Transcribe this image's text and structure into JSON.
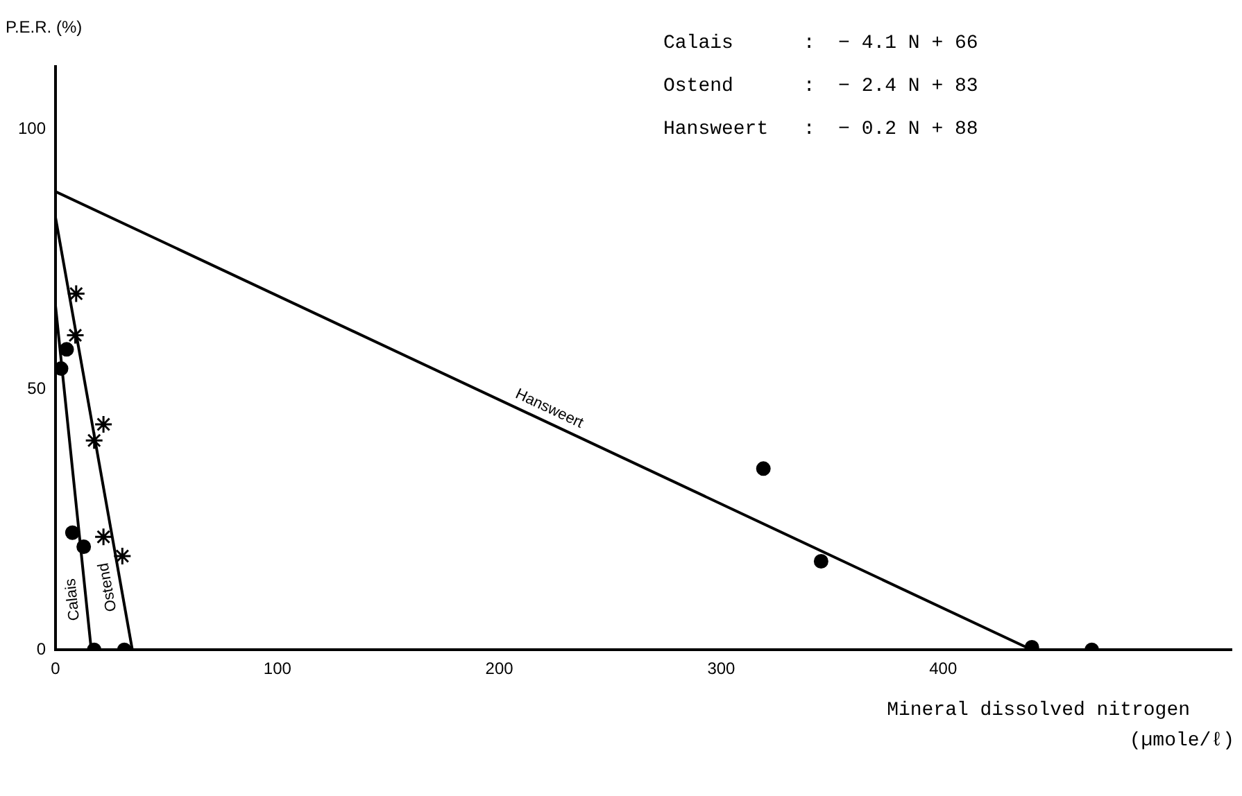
{
  "chart_data": {
    "type": "scatter",
    "ylabel": "P.E.R. (%)",
    "xlabel": "Mineral dissolved nitrogen (µmole/ℓ)",
    "xlim": [
      0,
      530
    ],
    "ylim": [
      0,
      112
    ],
    "xticks": [
      0,
      100,
      200,
      300,
      400
    ],
    "yticks": [
      0,
      50,
      100
    ],
    "grid": false,
    "legend": false,
    "annotations": [
      "Calais      :  − 4.1 N + 66",
      "Ostend      :  − 2.4 N + 83",
      "Hansweert   :  − 0.2 N + 88"
    ],
    "series": [
      {
        "type": "scatter",
        "marker": "circle",
        "color": "#000000",
        "x": [
          5,
          2.5,
          7.6,
          12.7,
          17.4,
          31
        ],
        "values": [
          57.7,
          54,
          22.5,
          19.8,
          0,
          0
        ]
      },
      {
        "type": "scatter",
        "marker": "cross",
        "color": "#000000",
        "x": [
          9.3,
          8.9,
          21.6,
          17.4,
          21.6,
          30.1
        ],
        "values": [
          68.4,
          60.4,
          43.3,
          40.2,
          21.7,
          18
        ]
      },
      {
        "type": "scatter",
        "marker": "circle",
        "color": "#000000",
        "x": [
          319,
          345,
          440,
          467
        ],
        "values": [
          34.8,
          17,
          0.5,
          0
        ]
      },
      {
        "type": "line",
        "name": "Calais",
        "marker": "none",
        "color": "#000000",
        "x": [
          0,
          16.1
        ],
        "values": [
          66,
          0
        ]
      },
      {
        "type": "line",
        "name": "Ostend",
        "marker": "none",
        "color": "#000000",
        "x": [
          0,
          34.6
        ],
        "values": [
          83,
          0
        ]
      },
      {
        "type": "line",
        "name": "Hansweert",
        "marker": "none",
        "color": "#000000",
        "x": [
          0,
          440
        ],
        "values": [
          88,
          0
        ]
      }
    ]
  }
}
